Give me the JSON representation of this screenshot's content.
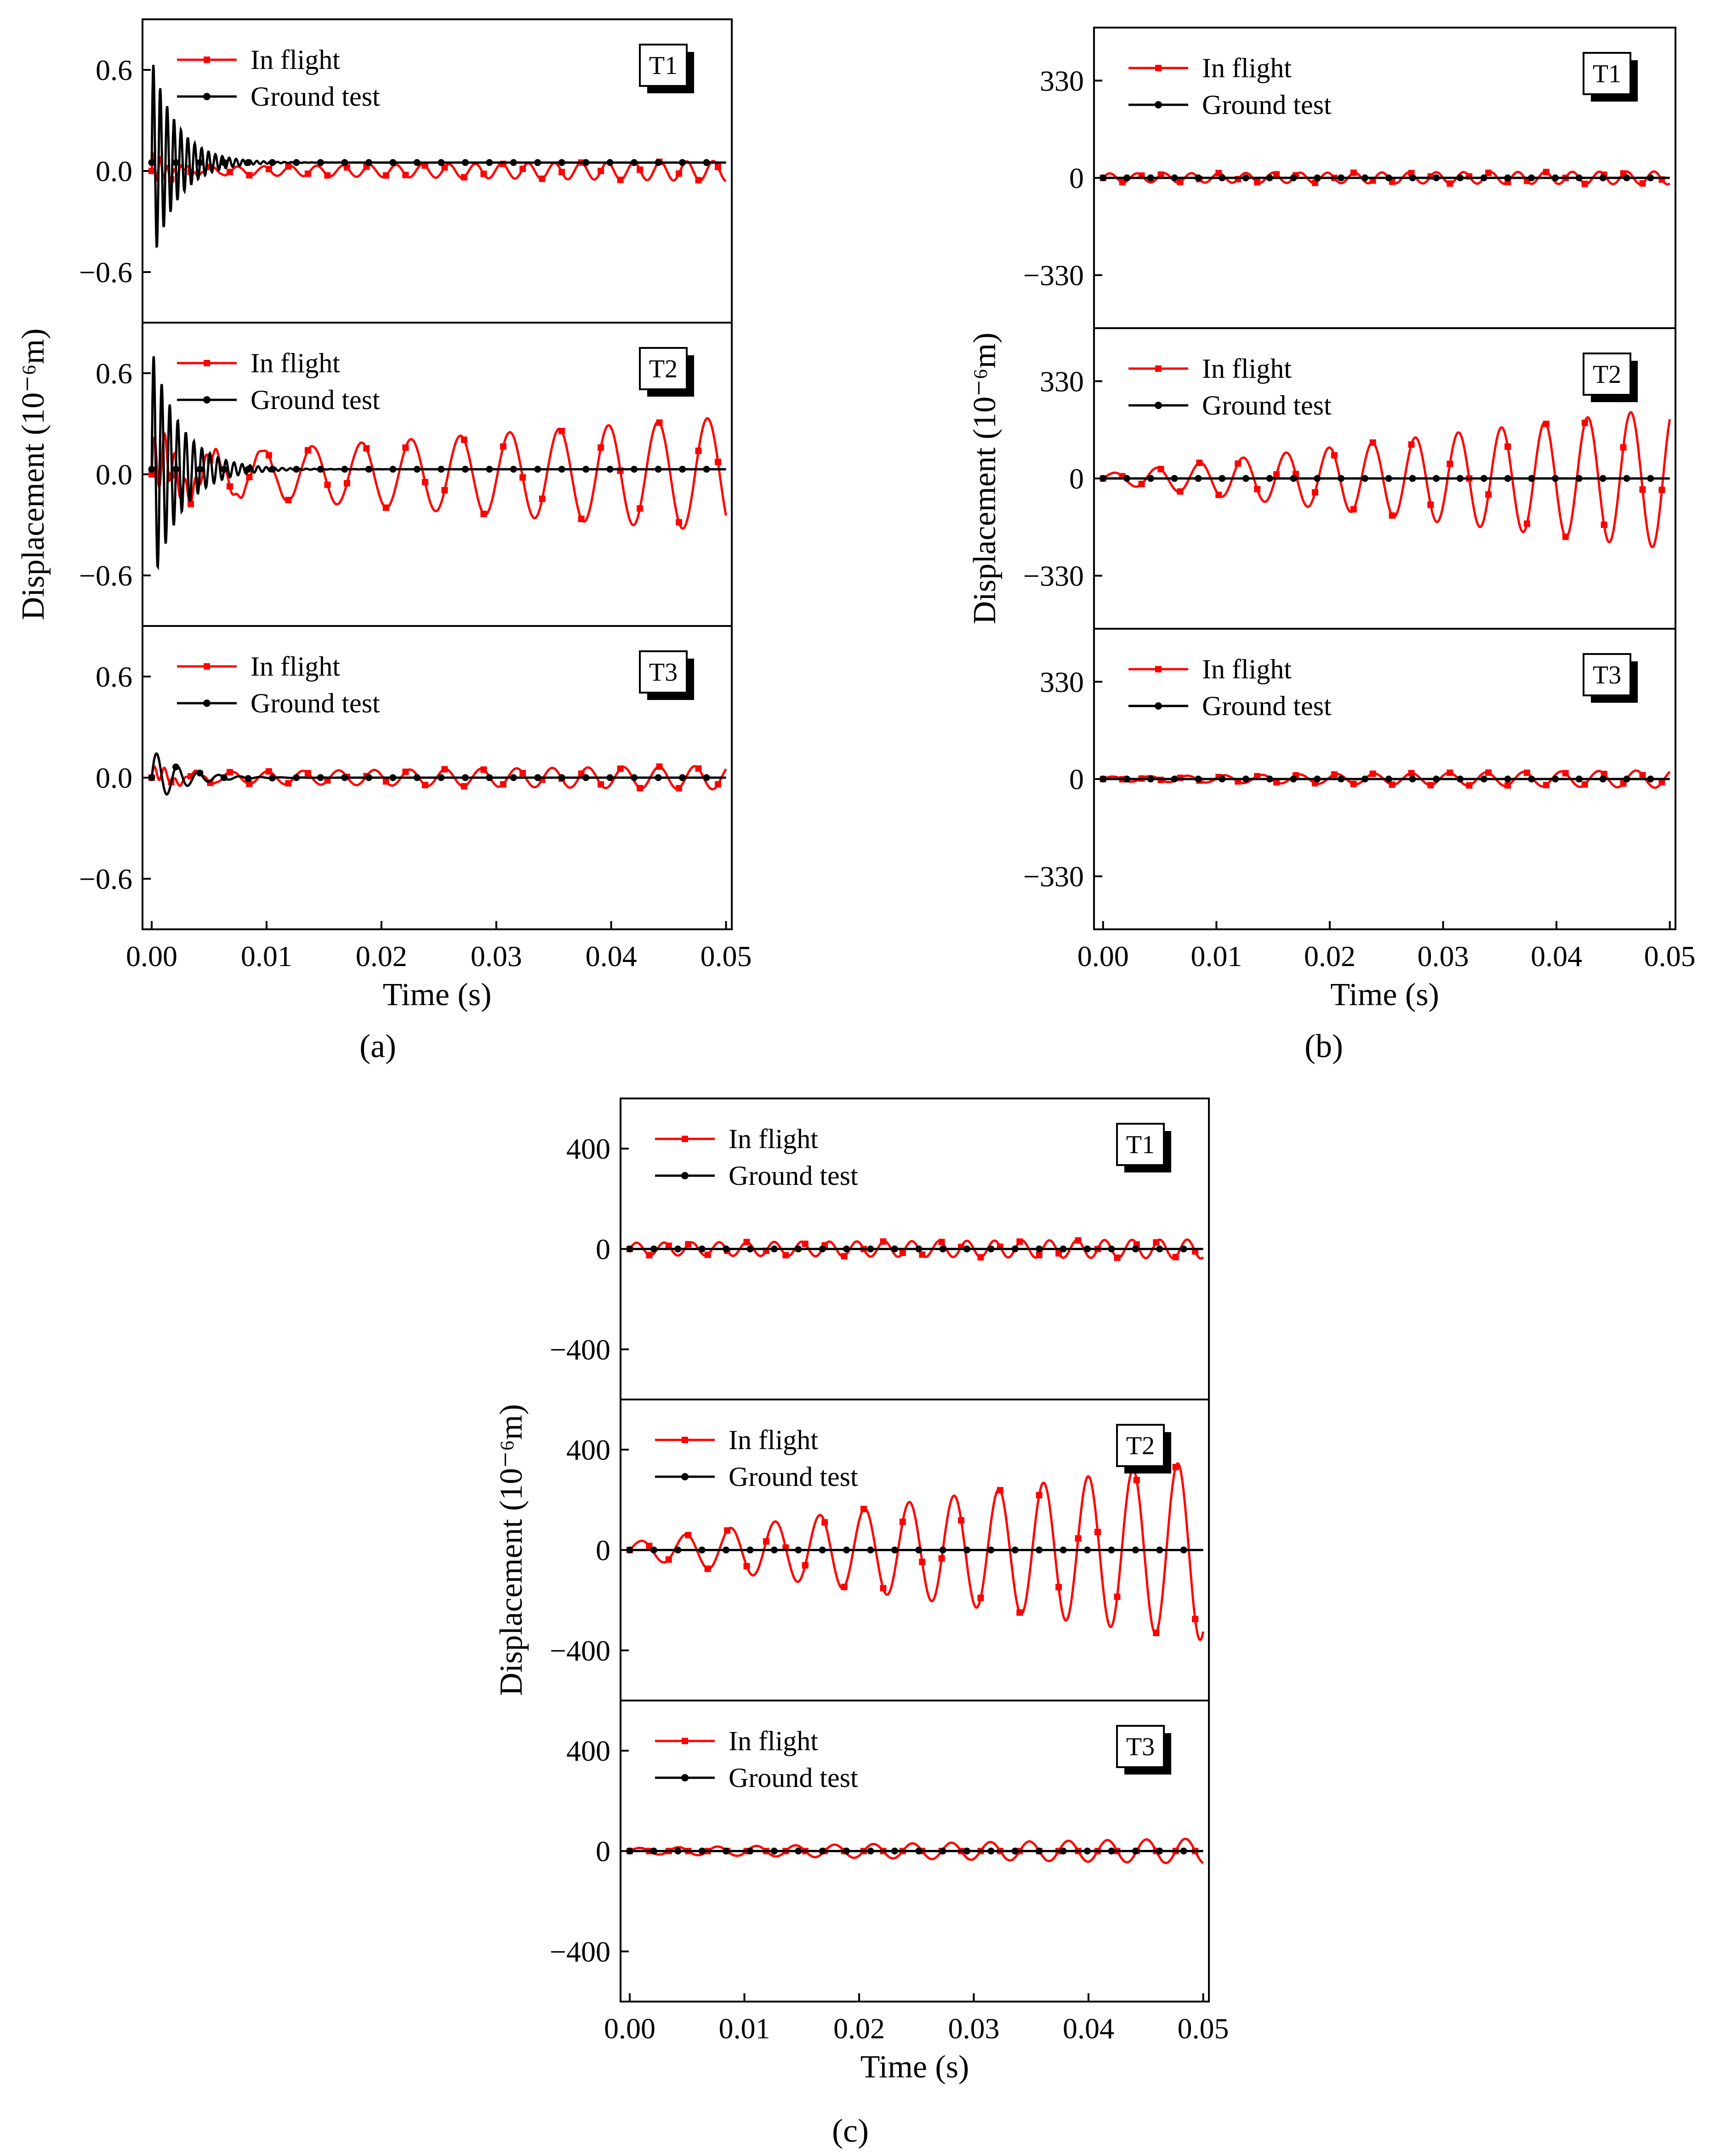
{
  "figure": {
    "legend_labels": [
      "In flight",
      "Ground test"
    ],
    "colors": {
      "in_flight": "#ff0000",
      "ground_test": "#000000",
      "axis": "#000000",
      "background": "#ffffff"
    }
  },
  "chart_data": [
    {
      "type": "line",
      "caption": "(a)",
      "xlabel": "Time (s)",
      "ylabel": "Displacement (10⁻⁶m)",
      "xlim": [
        -0.0008,
        0.0505
      ],
      "xticks": [
        0.0,
        0.01,
        0.02,
        0.03,
        0.04,
        0.05
      ],
      "xtick_labels": [
        "0.00",
        "0.01",
        "0.02",
        "0.03",
        "0.04",
        "0.05"
      ],
      "grid": false,
      "legend": "top-left",
      "subplots": [
        {
          "tag": "T1",
          "ylim": [
            -0.9,
            0.9
          ],
          "yticks": [
            0.6,
            0.0,
            -0.6
          ],
          "ytick_labels": [
            "0.6",
            "0.0",
            "−0.6"
          ],
          "series": [
            {
              "name": "In flight",
              "amp0": 0.02,
              "amp1": 0.06,
              "period": 0.0023,
              "offset": 0.0,
              "transient": 0.1,
              "transient_decay": 0.0015,
              "transient_period": 0.0006
            },
            {
              "name": "Ground test",
              "amp0": 0.0,
              "amp1": 0.0,
              "period": 0.003,
              "offset": 0.05,
              "transient": 0.62,
              "transient_decay": 0.0022,
              "transient_period": 0.0006
            }
          ]
        },
        {
          "tag": "T2",
          "ylim": [
            -0.9,
            0.9
          ],
          "yticks": [
            0.6,
            0.0,
            -0.6
          ],
          "ytick_labels": [
            "0.6",
            "0.0",
            "−0.6"
          ],
          "series": [
            {
              "name": "In flight",
              "amp0": 0.1,
              "amp1": 0.34,
              "period": 0.0043,
              "offset": 0.0,
              "transient": 0.2,
              "transient_decay": 0.003,
              "transient_period": 0.0009
            },
            {
              "name": "Ground test",
              "amp0": 0.0,
              "amp1": 0.0,
              "period": 0.003,
              "offset": 0.03,
              "transient": 0.72,
              "transient_decay": 0.0025,
              "transient_period": 0.0007
            }
          ]
        },
        {
          "tag": "T3",
          "ylim": [
            -0.9,
            0.9
          ],
          "yticks": [
            0.6,
            0.0,
            -0.6
          ],
          "ytick_labels": [
            "0.6",
            "0.0",
            "−0.6"
          ],
          "series": [
            {
              "name": "In flight",
              "amp0": 0.03,
              "amp1": 0.07,
              "period": 0.0031,
              "offset": 0.0,
              "transient": 0.06,
              "transient_decay": 0.002,
              "transient_period": 0.0009
            },
            {
              "name": "Ground test",
              "amp0": 0.0,
              "amp1": 0.0,
              "period": 0.003,
              "offset": 0.0,
              "transient": 0.17,
              "transient_decay": 0.0025,
              "transient_period": 0.0018
            }
          ]
        }
      ]
    },
    {
      "type": "line",
      "caption": "(b)",
      "xlabel": "Time (s)",
      "ylabel": "Displacement (10⁻⁶m)",
      "xlim": [
        -0.0008,
        0.0505
      ],
      "xticks": [
        0.0,
        0.01,
        0.02,
        0.03,
        0.04,
        0.05
      ],
      "xtick_labels": [
        "0.00",
        "0.01",
        "0.02",
        "0.03",
        "0.04",
        "0.05"
      ],
      "grid": false,
      "legend": "top-left",
      "subplots": [
        {
          "tag": "T1",
          "ylim": [
            -510,
            510
          ],
          "yticks": [
            330,
            0,
            -330
          ],
          "ytick_labels": [
            "330",
            "0",
            "−330"
          ],
          "series": [
            {
              "name": "In flight",
              "amp0": 15,
              "amp1": 22,
              "period": 0.0024,
              "offset": 0,
              "transient": 0,
              "transient_decay": 0.002,
              "transient_period": 0.001
            },
            {
              "name": "Ground test",
              "amp0": 0,
              "amp1": 0,
              "period": 0.003,
              "offset": 0,
              "transient": 0,
              "transient_decay": 0.002,
              "transient_period": 0.001
            }
          ]
        },
        {
          "tag": "T2",
          "ylim": [
            -510,
            510
          ],
          "yticks": [
            330,
            0,
            -330
          ],
          "ytick_labels": [
            "330",
            "0",
            "−330"
          ],
          "series": [
            {
              "name": "In flight",
              "amp0": 15,
              "amp1": 240,
              "period": 0.0038,
              "offset": 0,
              "transient": 0,
              "transient_decay": 0.002,
              "transient_period": 0.001
            },
            {
              "name": "Ground test",
              "amp0": 0,
              "amp1": 0,
              "period": 0.003,
              "offset": 0,
              "transient": 0,
              "transient_decay": 0.002,
              "transient_period": 0.001
            }
          ]
        },
        {
          "tag": "T3",
          "ylim": [
            -510,
            510
          ],
          "yticks": [
            330,
            0,
            -330
          ],
          "ytick_labels": [
            "330",
            "0",
            "−330"
          ],
          "series": [
            {
              "name": "In flight",
              "amp0": 8,
              "amp1": 30,
              "period": 0.0033,
              "offset": 0,
              "transient": 0,
              "transient_decay": 0.002,
              "transient_period": 0.001
            },
            {
              "name": "Ground test",
              "amp0": 0,
              "amp1": 0,
              "period": 0.003,
              "offset": 0,
              "transient": 0,
              "transient_decay": 0.002,
              "transient_period": 0.001
            }
          ]
        }
      ]
    },
    {
      "type": "line",
      "caption": "(c)",
      "xlabel": "Time (s)",
      "ylabel": "Displacement (10⁻⁶m)",
      "xlim": [
        -0.0008,
        0.0505
      ],
      "xticks": [
        0.0,
        0.01,
        0.02,
        0.03,
        0.04,
        0.05
      ],
      "xtick_labels": [
        "0.00",
        "0.01",
        "0.02",
        "0.03",
        "0.04",
        "0.05"
      ],
      "grid": false,
      "legend": "top-left",
      "subplots": [
        {
          "tag": "T1",
          "ylim": [
            -600,
            600
          ],
          "yticks": [
            400,
            0,
            -400
          ],
          "ytick_labels": [
            "400",
            "0",
            "−400"
          ],
          "series": [
            {
              "name": "In flight",
              "amp0": 25,
              "amp1": 38,
              "period": 0.0024,
              "offset": 0,
              "transient": 0,
              "transient_decay": 0.002,
              "transient_period": 0.001
            },
            {
              "name": "Ground test",
              "amp0": 0,
              "amp1": 0,
              "period": 0.003,
              "offset": 0,
              "transient": 0,
              "transient_decay": 0.002,
              "transient_period": 0.001
            }
          ]
        },
        {
          "tag": "T2",
          "ylim": [
            -600,
            600
          ],
          "yticks": [
            400,
            0,
            -400
          ],
          "ytick_labels": [
            "400",
            "0",
            "−400"
          ],
          "series": [
            {
              "name": "In flight",
              "amp0": 30,
              "amp1": 360,
              "period": 0.0039,
              "offset": 0,
              "transient": 0,
              "transient_decay": 0.002,
              "transient_period": 0.001
            },
            {
              "name": "Ground test",
              "amp0": 0,
              "amp1": 0,
              "period": 0.003,
              "offset": 0,
              "transient": 0,
              "transient_decay": 0.002,
              "transient_period": 0.001
            }
          ]
        },
        {
          "tag": "T3",
          "ylim": [
            -600,
            600
          ],
          "yticks": [
            400,
            0,
            -400
          ],
          "ytick_labels": [
            "400",
            "0",
            "−400"
          ],
          "series": [
            {
              "name": "In flight",
              "amp0": 12,
              "amp1": 50,
              "period": 0.0034,
              "offset": 0,
              "transient": 0,
              "transient_decay": 0.002,
              "transient_period": 0.001
            },
            {
              "name": "Ground test",
              "amp0": 0,
              "amp1": 0,
              "period": 0.003,
              "offset": 0,
              "transient": 0,
              "transient_decay": 0.002,
              "transient_period": 0.001
            }
          ]
        }
      ]
    }
  ]
}
